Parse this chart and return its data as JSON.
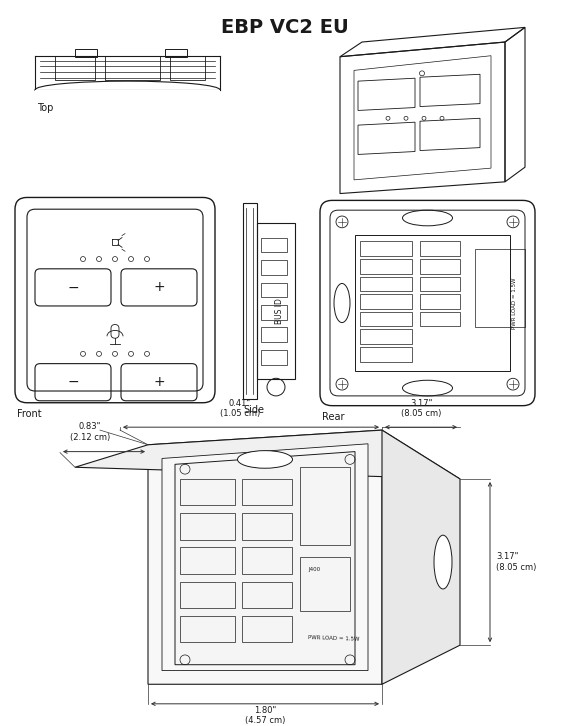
{
  "title": "EBP VC2 EU",
  "title_fontsize": 14,
  "title_fontweight": "bold",
  "background_color": "#ffffff",
  "line_color": "#1a1a1a",
  "label_fontsize": 7,
  "dim_fontsize": 6,
  "views": {
    "top_label": "Top",
    "front_label": "Front",
    "side_label": "Side",
    "rear_label": "Rear"
  },
  "dims": {
    "depth_in": "0.41\"",
    "depth_cm": "(1.05 cm)",
    "depth2_in": "0.83\"",
    "depth2_cm": "(2.12 cm)",
    "width_in": "3.17\"",
    "width_cm": "(8.05 cm)",
    "width2_in": "1.80\"",
    "width2_cm": "(4.57 cm)",
    "height_in": "3.17\"",
    "height_cm": "(8.05 cm)"
  }
}
